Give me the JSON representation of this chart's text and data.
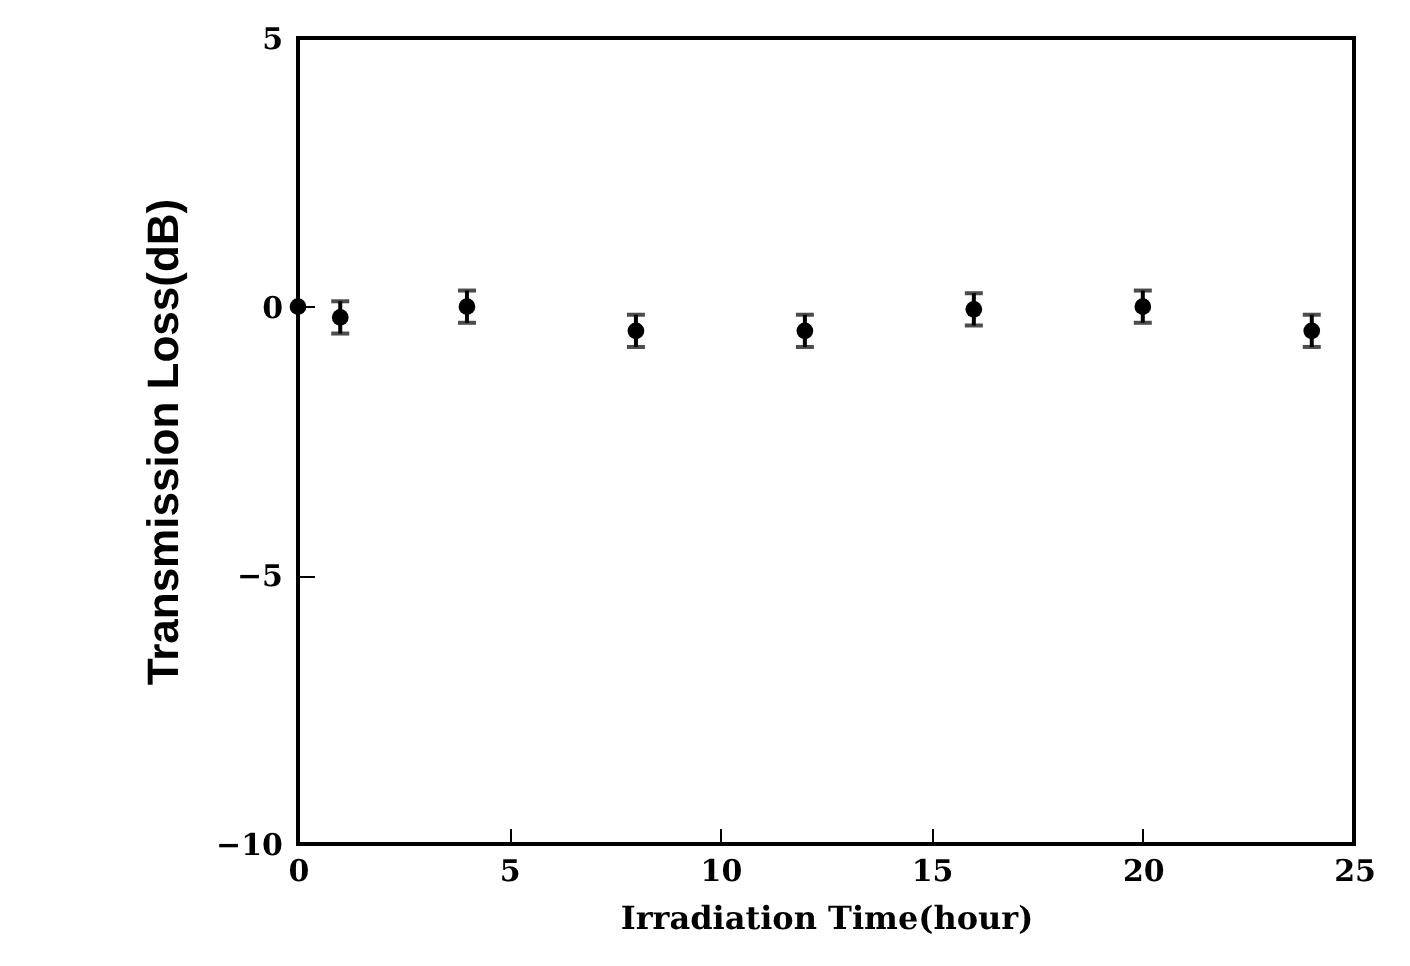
{
  "chart_data": {
    "type": "scatter",
    "xlabel": "Irradiation Time(hour)",
    "ylabel": "Transmission Loss(dB)",
    "x": [
      0,
      1,
      4,
      8,
      12,
      16,
      20,
      24
    ],
    "values": [
      0,
      -0.2,
      0,
      -0.45,
      -0.45,
      -0.05,
      0,
      -0.45
    ],
    "errors": [
      null,
      0.3,
      0.3,
      0.3,
      0.3,
      0.3,
      0.3,
      0.3
    ],
    "color": "#000000",
    "marker": "circle",
    "xlim": [
      0,
      25
    ],
    "xticks": [
      0,
      5,
      10,
      15,
      20,
      25
    ],
    "ylim": [
      -10,
      5
    ],
    "yticks": [
      -10,
      -5,
      0,
      5
    ],
    "grid": false
  }
}
